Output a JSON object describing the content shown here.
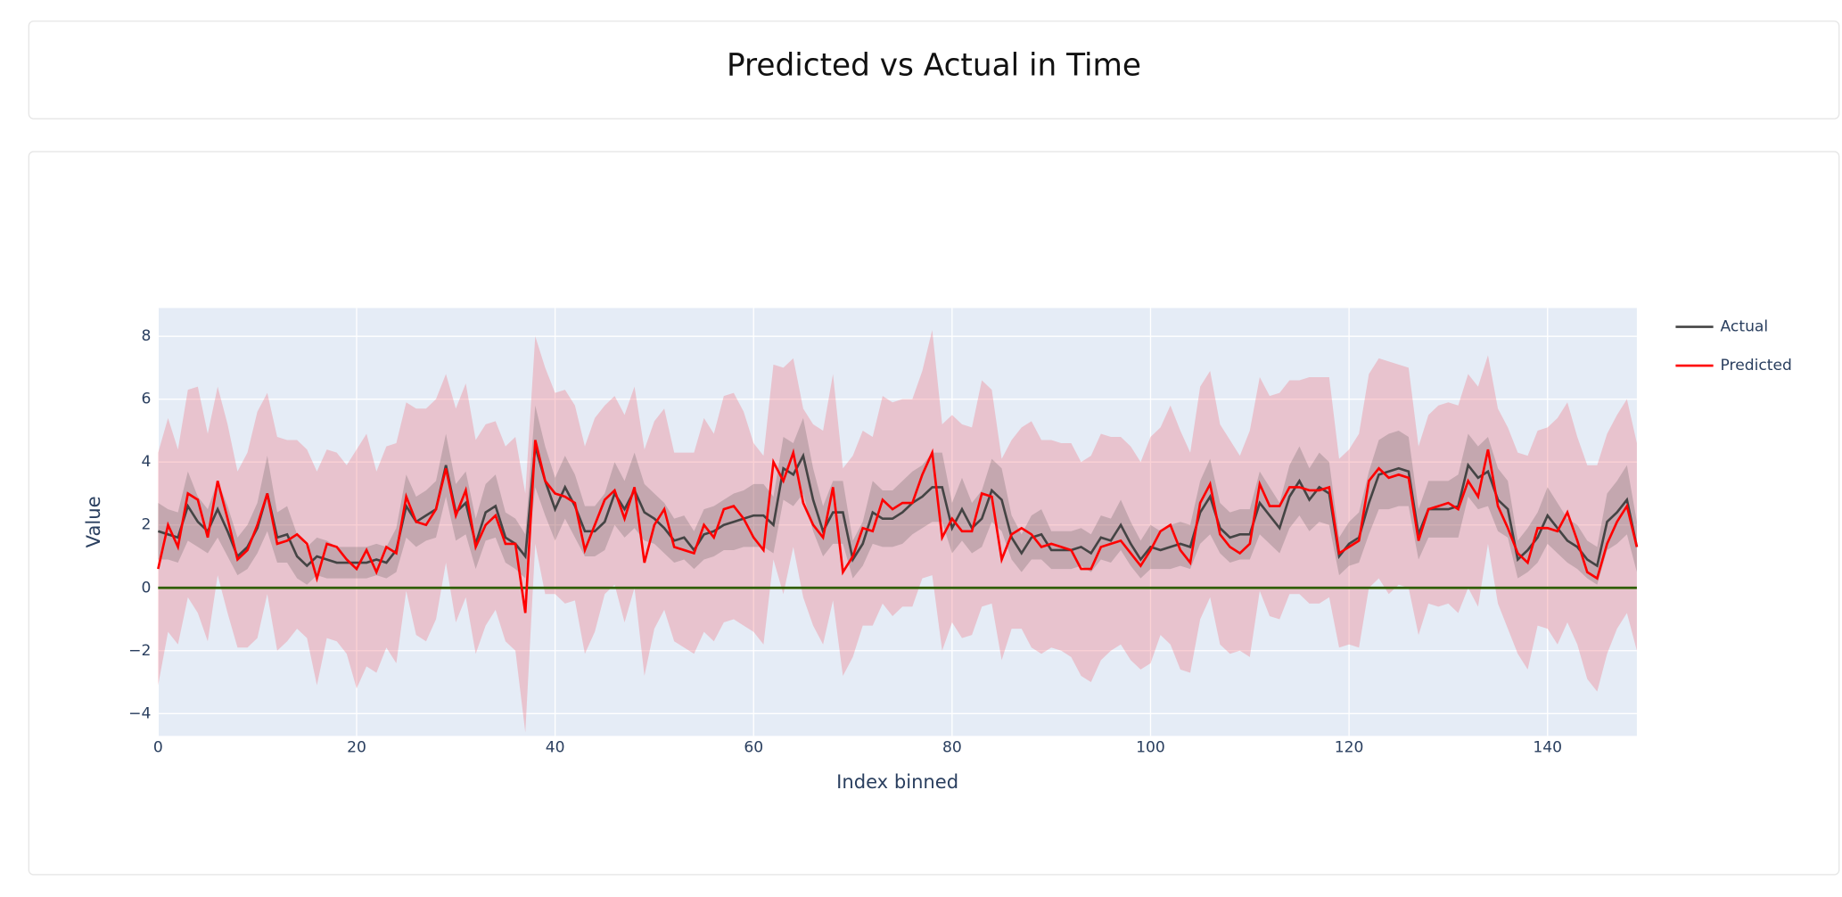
{
  "chart_data": {
    "type": "line",
    "title": "Predicted vs Actual in Time",
    "x_label": "Index binned",
    "y_label": "Value",
    "xlim": [
      0,
      149
    ],
    "ylim": [
      -4.71,
      8.9
    ],
    "xticks": [
      0,
      20,
      40,
      60,
      80,
      100,
      120,
      140
    ],
    "yticks": [
      {
        "value": -4,
        "label": "−4"
      },
      {
        "value": -2,
        "label": "−2"
      },
      0,
      2,
      4,
      6,
      8
    ],
    "grid": true,
    "legend_position": "right",
    "reference_line": 0,
    "reference_color": "#2f5f00",
    "x": [
      0,
      1,
      2,
      3,
      4,
      5,
      6,
      7,
      8,
      9,
      10,
      11,
      12,
      13,
      14,
      15,
      16,
      17,
      18,
      19,
      20,
      21,
      22,
      23,
      24,
      25,
      26,
      27,
      28,
      29,
      30,
      31,
      32,
      33,
      34,
      35,
      36,
      37,
      38,
      39,
      40,
      41,
      42,
      43,
      44,
      45,
      46,
      47,
      48,
      49,
      50,
      51,
      52,
      53,
      54,
      55,
      56,
      57,
      58,
      59,
      60,
      61,
      62,
      63,
      64,
      65,
      66,
      67,
      68,
      69,
      70,
      71,
      72,
      73,
      74,
      75,
      76,
      77,
      78,
      79,
      80,
      81,
      82,
      83,
      84,
      85,
      86,
      87,
      88,
      89,
      90,
      91,
      92,
      93,
      94,
      95,
      96,
      97,
      98,
      99,
      100,
      101,
      102,
      103,
      104,
      105,
      106,
      107,
      108,
      109,
      110,
      111,
      112,
      113,
      114,
      115,
      116,
      117,
      118,
      119,
      120,
      121,
      122,
      123,
      124,
      125,
      126,
      127,
      128,
      129,
      130,
      131,
      132,
      133,
      134,
      135,
      136,
      137,
      138,
      139,
      140,
      141,
      142,
      143,
      144,
      145,
      146,
      147,
      148,
      149
    ],
    "series": [
      {
        "name": "Actual",
        "color": "#444444",
        "band_color": "rgba(68,68,68,0.22)",
        "values": [
          1.8,
          1.7,
          1.6,
          2.6,
          2.1,
          1.8,
          2.5,
          1.8,
          1.0,
          1.3,
          1.9,
          3.0,
          1.6,
          1.7,
          1.0,
          0.7,
          1.0,
          0.9,
          0.8,
          0.8,
          0.8,
          0.8,
          0.9,
          0.8,
          1.2,
          2.6,
          2.1,
          2.3,
          2.5,
          3.9,
          2.4,
          2.7,
          1.4,
          2.4,
          2.6,
          1.6,
          1.4,
          1.0,
          4.5,
          3.4,
          2.5,
          3.2,
          2.6,
          1.8,
          1.8,
          2.1,
          3.0,
          2.5,
          3.1,
          2.4,
          2.2,
          1.9,
          1.5,
          1.6,
          1.2,
          1.7,
          1.8,
          2.0,
          2.1,
          2.2,
          2.3,
          2.3,
          2.0,
          3.8,
          3.6,
          4.2,
          2.8,
          1.8,
          2.4,
          2.4,
          0.9,
          1.4,
          2.4,
          2.2,
          2.2,
          2.4,
          2.7,
          2.9,
          3.2,
          3.2,
          1.9,
          2.5,
          1.9,
          2.2,
          3.1,
          2.8,
          1.6,
          1.1,
          1.6,
          1.7,
          1.2,
          1.2,
          1.2,
          1.3,
          1.1,
          1.6,
          1.5,
          2.0,
          1.4,
          0.9,
          1.3,
          1.2,
          1.3,
          1.4,
          1.3,
          2.4,
          2.9,
          1.9,
          1.6,
          1.7,
          1.7,
          2.7,
          2.3,
          1.9,
          2.9,
          3.4,
          2.8,
          3.2,
          3.0,
          1.0,
          1.4,
          1.6,
          2.7,
          3.6,
          3.7,
          3.8,
          3.7,
          1.7,
          2.5,
          2.5,
          2.5,
          2.6,
          3.9,
          3.5,
          3.7,
          2.8,
          2.5,
          0.9,
          1.2,
          1.6,
          2.3,
          1.9,
          1.5,
          1.3,
          0.9,
          0.7,
          2.1,
          2.4,
          2.8,
          1.3
        ],
        "error": [
          0.9,
          0.8,
          0.8,
          1.1,
          0.8,
          0.7,
          0.9,
          0.8,
          0.6,
          0.7,
          0.8,
          1.2,
          0.8,
          0.9,
          0.7,
          0.6,
          0.6,
          0.6,
          0.5,
          0.5,
          0.5,
          0.5,
          0.5,
          0.5,
          0.7,
          1.0,
          0.8,
          0.8,
          0.9,
          1.0,
          0.9,
          1.0,
          0.8,
          0.9,
          1.0,
          0.8,
          0.8,
          0.7,
          1.3,
          1.1,
          1.0,
          1.0,
          1.0,
          0.8,
          0.8,
          0.9,
          1.0,
          0.9,
          1.2,
          0.9,
          0.8,
          0.8,
          0.7,
          0.7,
          0.6,
          0.8,
          0.8,
          0.8,
          0.9,
          0.9,
          1.0,
          1.0,
          0.9,
          1.0,
          1.0,
          1.2,
          1.0,
          0.8,
          1.0,
          1.0,
          0.6,
          0.7,
          1.0,
          0.9,
          0.9,
          1.0,
          1.0,
          1.0,
          1.1,
          1.1,
          0.8,
          1.0,
          0.8,
          0.9,
          1.0,
          1.0,
          0.7,
          0.6,
          0.7,
          0.8,
          0.6,
          0.6,
          0.6,
          0.6,
          0.6,
          0.7,
          0.7,
          0.8,
          0.7,
          0.6,
          0.7,
          0.6,
          0.7,
          0.7,
          0.7,
          1.0,
          1.2,
          0.8,
          0.8,
          0.8,
          0.8,
          1.0,
          0.9,
          0.8,
          1.0,
          1.1,
          1.0,
          1.1,
          1.0,
          0.6,
          0.7,
          0.8,
          1.0,
          1.1,
          1.2,
          1.2,
          1.1,
          0.8,
          0.9,
          0.9,
          0.9,
          1.0,
          1.0,
          1.0,
          1.1,
          1.0,
          0.9,
          0.6,
          0.7,
          0.8,
          0.9,
          0.8,
          0.7,
          0.7,
          0.6,
          0.6,
          0.9,
          1.0,
          1.1,
          0.8
        ]
      },
      {
        "name": "Predicted",
        "color": "#ff0000",
        "band_color": "rgba(240,90,105,0.28)",
        "values": [
          0.6,
          2.0,
          1.3,
          3.0,
          2.8,
          1.6,
          3.4,
          2.2,
          0.9,
          1.2,
          2.0,
          3.0,
          1.4,
          1.5,
          1.7,
          1.4,
          0.3,
          1.4,
          1.3,
          0.9,
          0.6,
          1.2,
          0.5,
          1.3,
          1.1,
          2.9,
          2.1,
          2.0,
          2.5,
          3.8,
          2.3,
          3.1,
          1.3,
          2.0,
          2.3,
          1.4,
          1.4,
          -0.8,
          4.7,
          3.4,
          3.0,
          2.9,
          2.7,
          1.2,
          2.0,
          2.8,
          3.1,
          2.2,
          3.2,
          0.8,
          2.0,
          2.5,
          1.3,
          1.2,
          1.1,
          2.0,
          1.6,
          2.5,
          2.6,
          2.2,
          1.6,
          1.2,
          4.0,
          3.4,
          4.3,
          2.7,
          2.0,
          1.6,
          3.2,
          0.5,
          1.0,
          1.9,
          1.8,
          2.8,
          2.5,
          2.7,
          2.7,
          3.6,
          4.3,
          1.6,
          2.2,
          1.8,
          1.8,
          3.0,
          2.9,
          0.9,
          1.7,
          1.9,
          1.7,
          1.3,
          1.4,
          1.3,
          1.2,
          0.6,
          0.6,
          1.3,
          1.4,
          1.5,
          1.1,
          0.7,
          1.2,
          1.8,
          2.0,
          1.2,
          0.8,
          2.7,
          3.3,
          1.7,
          1.3,
          1.1,
          1.4,
          3.3,
          2.6,
          2.6,
          3.2,
          3.2,
          3.1,
          3.1,
          3.2,
          1.1,
          1.3,
          1.5,
          3.4,
          3.8,
          3.5,
          3.6,
          3.5,
          1.5,
          2.5,
          2.6,
          2.7,
          2.5,
          3.4,
          2.9,
          4.4,
          2.6,
          1.9,
          1.1,
          0.8,
          1.9,
          1.9,
          1.8,
          2.4,
          1.5,
          0.5,
          0.3,
          1.4,
          2.1,
          2.6,
          1.3
        ],
        "error": [
          3.7,
          3.4,
          3.1,
          3.3,
          3.6,
          3.3,
          3.0,
          3.0,
          2.8,
          3.1,
          3.6,
          3.2,
          3.4,
          3.2,
          3.0,
          3.0,
          3.4,
          3.0,
          3.0,
          3.0,
          3.8,
          3.7,
          3.2,
          3.2,
          3.5,
          3.0,
          3.6,
          3.7,
          3.5,
          3.0,
          3.4,
          3.4,
          3.4,
          3.2,
          3.0,
          3.1,
          3.4,
          3.8,
          3.3,
          3.6,
          3.2,
          3.4,
          3.1,
          3.3,
          3.4,
          3.0,
          3.0,
          3.3,
          3.2,
          3.6,
          3.3,
          3.2,
          3.0,
          3.1,
          3.2,
          3.4,
          3.3,
          3.6,
          3.6,
          3.4,
          3.0,
          3.0,
          3.1,
          3.6,
          3.0,
          3.0,
          3.2,
          3.4,
          3.6,
          3.3,
          3.2,
          3.1,
          3.0,
          3.3,
          3.4,
          3.3,
          3.3,
          3.3,
          3.9,
          3.6,
          3.3,
          3.4,
          3.3,
          3.6,
          3.4,
          3.2,
          3.0,
          3.2,
          3.6,
          3.4,
          3.3,
          3.3,
          3.4,
          3.4,
          3.6,
          3.6,
          3.4,
          3.3,
          3.4,
          3.3,
          3.6,
          3.3,
          3.8,
          3.8,
          3.5,
          3.7,
          3.6,
          3.5,
          3.4,
          3.1,
          3.6,
          3.4,
          3.5,
          3.6,
          3.4,
          3.4,
          3.6,
          3.6,
          3.5,
          3.0,
          3.1,
          3.4,
          3.4,
          3.5,
          3.7,
          3.5,
          3.5,
          3.0,
          3.0,
          3.2,
          3.2,
          3.3,
          3.4,
          3.5,
          3.0,
          3.1,
          3.2,
          3.2,
          3.4,
          3.1,
          3.2,
          3.6,
          3.5,
          3.3,
          3.4,
          3.6,
          3.5,
          3.4,
          3.4,
          3.3
        ]
      }
    ]
  }
}
